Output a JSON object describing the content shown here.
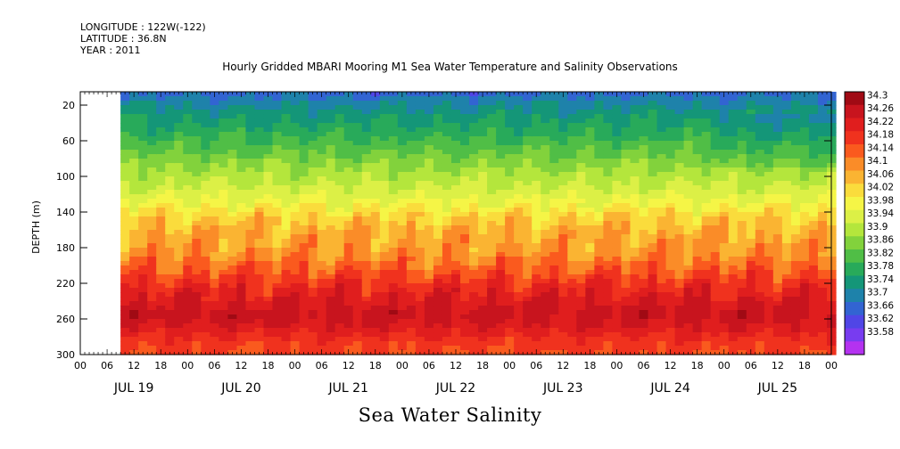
{
  "header": {
    "longitude": "LONGITUDE : 122W(-122)",
    "latitude": "LATITUDE : 36.8N",
    "year": "YEAR : 2011"
  },
  "plot_title": "Hourly Gridded MBARI Mooring M1 Sea Water Temperature and Salinity Observations",
  "variable_title": "Sea Water Salinity",
  "chart_data": {
    "type": "heatmap",
    "title": "Hourly Gridded MBARI Mooring M1 Sea Water Temperature and Salinity Observations",
    "subtitle": "Sea Water Salinity",
    "ylabel": "DEPTH (m)",
    "y_inverted": true,
    "ylim": [
      300,
      5
    ],
    "y_ticks": [
      20,
      60,
      100,
      140,
      180,
      220,
      260,
      300
    ],
    "x_range_hours": [
      0,
      168
    ],
    "x_hour_ticks": [
      "00",
      "06",
      "12",
      "18",
      "00",
      "06",
      "12",
      "18",
      "00",
      "06",
      "12",
      "18",
      "00",
      "06",
      "12",
      "18",
      "00",
      "06",
      "12",
      "18",
      "00",
      "06",
      "12",
      "18",
      "00",
      "06",
      "12",
      "18",
      "00"
    ],
    "day_labels": [
      "JUL 19",
      "JUL 20",
      "JUL 21",
      "JUL 22",
      "JUL 23",
      "JUL 24",
      "JUL 25"
    ],
    "data_start_hour": 9,
    "colorbar": {
      "levels": [
        "34.3",
        "34.26",
        "34.22",
        "34.18",
        "34.14",
        "34.1",
        "34.06",
        "34.02",
        "33.98",
        "33.94",
        "33.9",
        "33.86",
        "33.82",
        "33.78",
        "33.74",
        "33.7",
        "33.66",
        "33.62",
        "33.58"
      ],
      "colors": [
        "#a00a14",
        "#c8141e",
        "#e01e1e",
        "#f0321e",
        "#fa5a1e",
        "#fa8c28",
        "#fab432",
        "#fadc3c",
        "#f5f546",
        "#dcf046",
        "#b4e63c",
        "#82d23c",
        "#50be46",
        "#28aa5a",
        "#149678",
        "#1e82aa",
        "#3264d2",
        "#5046e6",
        "#783cf0",
        "#b432f0"
      ]
    },
    "profile": [
      {
        "depth": 5,
        "value": 33.68
      },
      {
        "depth": 15,
        "value": 33.72
      },
      {
        "depth": 30,
        "value": 33.76
      },
      {
        "depth": 50,
        "value": 33.8
      },
      {
        "depth": 70,
        "value": 33.85
      },
      {
        "depth": 90,
        "value": 33.9
      },
      {
        "depth": 110,
        "value": 33.94
      },
      {
        "depth": 130,
        "value": 33.99
      },
      {
        "depth": 145,
        "value": 34.05
      },
      {
        "depth": 165,
        "value": 34.09
      },
      {
        "depth": 185,
        "value": 34.11
      },
      {
        "depth": 205,
        "value": 34.16
      },
      {
        "depth": 225,
        "value": 34.22
      },
      {
        "depth": 245,
        "value": 34.26
      },
      {
        "depth": 255,
        "value": 34.28
      },
      {
        "depth": 270,
        "value": 34.25
      },
      {
        "depth": 285,
        "value": 34.2
      },
      {
        "depth": 300,
        "value": 34.18
      }
    ]
  }
}
